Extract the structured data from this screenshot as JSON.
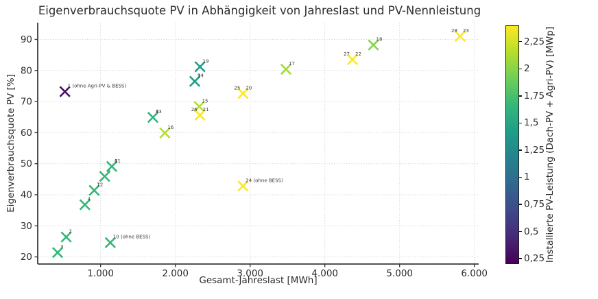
{
  "chart_data": {
    "type": "scatter",
    "title": "Eigenverbrauchsquote PV in Abhängigkeit von Jahreslast und PV-Nennleistung",
    "xlabel": "Gesamt-Jahreslast [MWh]",
    "ylabel": "Eigenverbrauchsquote PV [%]",
    "marker": "x",
    "grid": "dotted",
    "xlim": [
      159,
      6058
    ],
    "ylim": [
      17.7,
      95.4
    ],
    "x_ticks": [
      {
        "v": 1000,
        "label": "1.000"
      },
      {
        "v": 2000,
        "label": "2.000"
      },
      {
        "v": 3000,
        "label": "3.000"
      },
      {
        "v": 4000,
        "label": "4.000"
      },
      {
        "v": 5000,
        "label": "5.000"
      },
      {
        "v": 6000,
        "label": "6.000"
      }
    ],
    "y_ticks": [
      {
        "v": 20,
        "label": "20"
      },
      {
        "v": 30,
        "label": "30"
      },
      {
        "v": 40,
        "label": "40"
      },
      {
        "v": 50,
        "label": "50"
      },
      {
        "v": 60,
        "label": "60"
      },
      {
        "v": 70,
        "label": "70"
      },
      {
        "v": 80,
        "label": "80"
      },
      {
        "v": 90,
        "label": "90"
      }
    ],
    "points": [
      {
        "x": 523,
        "y": 73.2,
        "color": "#46106a",
        "labels": [
          {
            "text": "1 (ohne Agri-PV & BESS)",
            "side": "tr"
          }
        ]
      },
      {
        "x": 540,
        "y": 26.4,
        "color": "#35b779",
        "labels": [
          {
            "text": "2",
            "side": "tr"
          }
        ]
      },
      {
        "x": 425,
        "y": 21.4,
        "color": "#35b779",
        "labels": [
          {
            "text": "3",
            "side": "tr"
          }
        ]
      },
      {
        "x": 790,
        "y": 36.8,
        "color": "#35b779",
        "labels": [
          {
            "text": "4",
            "side": "tr"
          }
        ]
      },
      {
        "x": 1055,
        "y": 45.9,
        "color": "#35b779",
        "labels": [
          {
            "text": "5",
            "side": "tr"
          }
        ]
      },
      {
        "x": 1150,
        "y": 49.1,
        "color": "#35b779",
        "labels": [
          {
            "text": "6",
            "side": "tr"
          },
          {
            "text": "11",
            "side": "tr"
          }
        ]
      },
      {
        "x": 915,
        "y": 41.4,
        "color": "#35b779",
        "labels": [
          {
            "text": "7",
            "side": "tr"
          },
          {
            "text": "12",
            "side": "tr"
          }
        ]
      },
      {
        "x": 1700,
        "y": 64.9,
        "color": "#2eb37c",
        "labels": [
          {
            "text": "8",
            "side": "tr"
          },
          {
            "text": "13",
            "side": "tr"
          }
        ]
      },
      {
        "x": 2260,
        "y": 76.5,
        "color": "#1f9e89",
        "labels": [
          {
            "text": "9",
            "side": "tr"
          },
          {
            "text": "14",
            "side": "tr"
          }
        ]
      },
      {
        "x": 1130,
        "y": 24.6,
        "color": "#35b779",
        "labels": [
          {
            "text": "10 (ohne BESS)",
            "side": "tr"
          }
        ]
      },
      {
        "x": 2320,
        "y": 68.4,
        "color": "#b5de2b",
        "labels": [
          {
            "text": "15",
            "side": "tr"
          }
        ]
      },
      {
        "x": 1860,
        "y": 59.9,
        "color": "#b5de2b",
        "labels": [
          {
            "text": "16",
            "side": "tr"
          }
        ]
      },
      {
        "x": 3480,
        "y": 80.4,
        "color": "#a2da37",
        "labels": [
          {
            "text": "17",
            "side": "tr"
          }
        ]
      },
      {
        "x": 4650,
        "y": 88.2,
        "color": "#86d549",
        "labels": [
          {
            "text": "18",
            "side": "tr"
          }
        ]
      },
      {
        "x": 2330,
        "y": 81.2,
        "color": "#1f9e89",
        "labels": [
          {
            "text": "19",
            "side": "tr"
          }
        ]
      },
      {
        "x": 2905,
        "y": 72.6,
        "color": "#fde725",
        "labels": [
          {
            "text": "25",
            "side": "tl"
          },
          {
            "text": "20",
            "side": "tr"
          }
        ]
      },
      {
        "x": 2330,
        "y": 65.6,
        "color": "#fde725",
        "labels": [
          {
            "text": "26",
            "side": "tl"
          },
          {
            "text": "21",
            "side": "tr"
          }
        ]
      },
      {
        "x": 4370,
        "y": 83.5,
        "color": "#fde725",
        "labels": [
          {
            "text": "27",
            "side": "tl"
          },
          {
            "text": "22",
            "side": "tr"
          }
        ]
      },
      {
        "x": 5810,
        "y": 91.0,
        "color": "#fde725",
        "labels": [
          {
            "text": "28",
            "side": "tl"
          },
          {
            "text": "23",
            "side": "tr"
          }
        ]
      },
      {
        "x": 2905,
        "y": 42.8,
        "color": "#fde725",
        "labels": [
          {
            "text": "24 (ohne BESS)",
            "side": "tr"
          }
        ]
      }
    ],
    "colorbar": {
      "label": "Installierte PV-Leistung (Dach-PV + Agri-PV) [MWp]",
      "vmin": 0.2,
      "vmax": 2.4,
      "ticks": [
        {
          "v": 0.25,
          "label": "0,25"
        },
        {
          "v": 0.5,
          "label": "0,5"
        },
        {
          "v": 0.75,
          "label": "0,75"
        },
        {
          "v": 1,
          "label": "1"
        },
        {
          "v": 1.25,
          "label": "1,25"
        },
        {
          "v": 1.5,
          "label": "1,5"
        },
        {
          "v": 1.75,
          "label": "1,75"
        },
        {
          "v": 2,
          "label": "2"
        },
        {
          "v": 2.25,
          "label": "2,25"
        }
      ],
      "gradient": [
        "#440154",
        "#482878",
        "#3e4989",
        "#31688e",
        "#26828e",
        "#1f9e89",
        "#35b779",
        "#6ece58",
        "#b5de2b",
        "#fde725"
      ]
    }
  }
}
